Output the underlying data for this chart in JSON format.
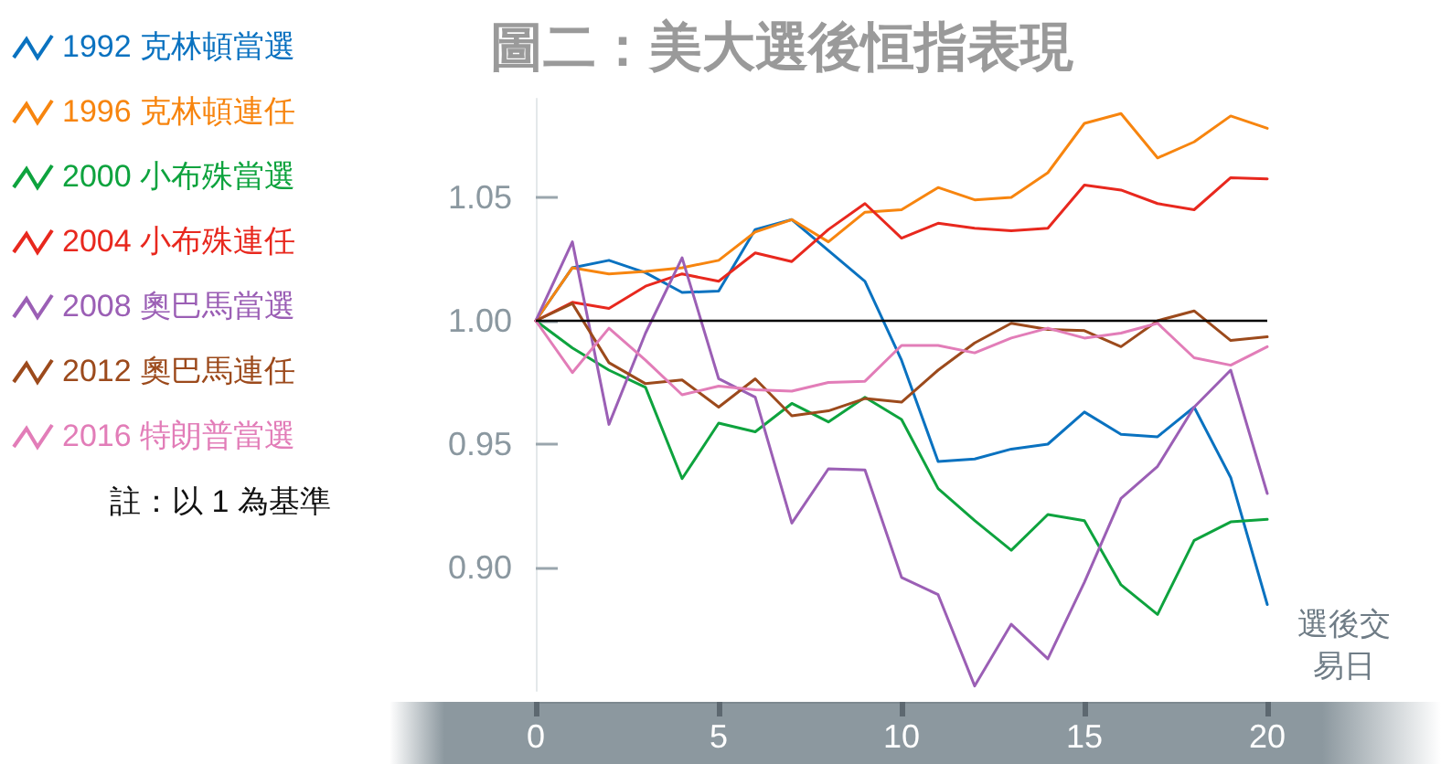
{
  "chart_data": {
    "type": "line",
    "title": "圖二：美大選後恒指表現",
    "xlabel": "選後交易日",
    "annotations": [
      "註：以 1 為基準"
    ],
    "x": [
      0,
      1,
      2,
      3,
      4,
      5,
      6,
      7,
      8,
      9,
      10,
      11,
      12,
      13,
      14,
      15,
      16,
      17,
      18,
      19,
      20
    ],
    "xlim": [
      0,
      20
    ],
    "xticks": [
      0,
      5,
      10,
      15,
      20
    ],
    "ylim": [
      0.85,
      1.09
    ],
    "yticks": [
      {
        "value": 0.9,
        "label": "0.90"
      },
      0.95,
      {
        "value": 1,
        "label": "1.00"
      },
      1.05
    ],
    "grid": false,
    "legend": "top left",
    "marker": "none",
    "line_style": "solid",
    "ref_lines": [
      {
        "axis": "y",
        "value": 1,
        "color": "#000000"
      }
    ],
    "series": [
      {
        "name": "1992 克林頓當選",
        "color": "#0a72c0",
        "values": [
          1,
          1.0215,
          1.0245,
          1.0195,
          1.0115,
          1.012,
          1.037,
          1.041,
          1.0285,
          1.016,
          0.984,
          0.943,
          0.944,
          0.948,
          0.95,
          0.963,
          0.954,
          0.953,
          0.965,
          0.9365,
          0.885
        ]
      },
      {
        "name": "1996 克林頓連任",
        "color": "#f7850f",
        "values": [
          1,
          1.0215,
          1.019,
          1.02,
          1.0215,
          1.0245,
          1.036,
          1.041,
          1.032,
          1.044,
          1.045,
          1.054,
          1.049,
          1.05,
          1.06,
          1.08,
          1.084,
          1.066,
          1.0725,
          1.083,
          1.078
        ]
      },
      {
        "name": "2000 小布殊當選",
        "color": "#0ea33e",
        "values": [
          1,
          0.989,
          0.98,
          0.973,
          0.936,
          0.9585,
          0.955,
          0.9665,
          0.959,
          0.969,
          0.96,
          0.932,
          0.919,
          0.907,
          0.9215,
          0.919,
          0.893,
          0.881,
          0.911,
          0.9185,
          0.9195
        ]
      },
      {
        "name": "2004 小布殊連任",
        "color": "#e8281e",
        "values": [
          1,
          1.0075,
          1.005,
          1.014,
          1.019,
          1.016,
          1.0275,
          1.024,
          1.037,
          1.0475,
          1.0335,
          1.0395,
          1.0375,
          1.0365,
          1.0375,
          1.055,
          1.053,
          1.0475,
          1.045,
          1.058,
          1.0575
        ]
      },
      {
        "name": "2008 奧巴馬當選",
        "color": "#9b5fb5",
        "values": [
          1,
          1.032,
          0.958,
          0.995,
          1.0255,
          0.9765,
          0.969,
          0.918,
          0.94,
          0.9395,
          0.896,
          0.889,
          0.852,
          0.877,
          0.863,
          0.894,
          0.928,
          0.941,
          0.965,
          0.98,
          0.93
        ]
      },
      {
        "name": "2012 奧巴馬連任",
        "color": "#9c4a1c",
        "values": [
          1,
          1.007,
          0.983,
          0.9745,
          0.976,
          0.965,
          0.9765,
          0.9615,
          0.9635,
          0.9685,
          0.967,
          0.98,
          0.991,
          0.999,
          0.9965,
          0.996,
          0.9895,
          1,
          1.004,
          0.992,
          0.9935
        ]
      },
      {
        "name": "2016 特朗普當選",
        "color": "#e27db8",
        "values": [
          1,
          0.979,
          0.997,
          0.984,
          0.97,
          0.9735,
          0.972,
          0.9715,
          0.975,
          0.9755,
          0.99,
          0.99,
          0.987,
          0.993,
          0.997,
          0.993,
          0.995,
          0.999,
          0.985,
          0.982,
          0.9895
        ]
      }
    ]
  }
}
